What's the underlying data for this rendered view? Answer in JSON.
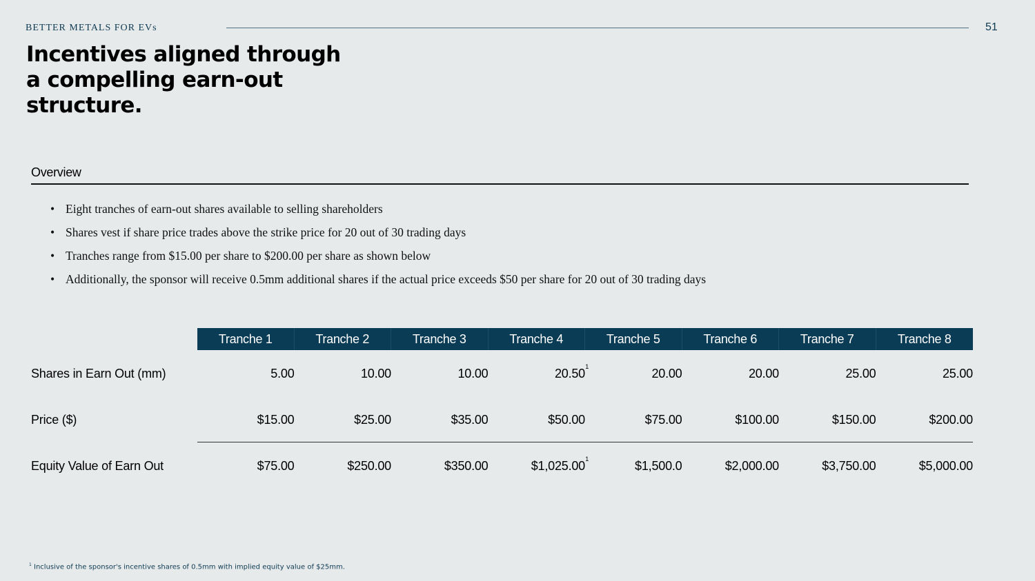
{
  "header": {
    "brand": "BETTER METALS FOR EVs",
    "page_number": "51"
  },
  "title": "Incentives aligned through a compelling earn-out structure.",
  "overview": {
    "label": "Overview",
    "bullets": [
      "Eight tranches of earn-out shares available to selling shareholders",
      "Shares vest if share price trades above the strike price for 20 out of 30 trading days",
      "Tranches range from $15.00 per share to $200.00 per share as shown below",
      "Additionally, the sponsor will receive 0.5mm additional shares if the actual price exceeds $50 per share for 20 out of 30 trading days"
    ]
  },
  "table": {
    "columns": [
      "Tranche 1",
      "Tranche 2",
      "Tranche 3",
      "Tranche 4",
      "Tranche 5",
      "Tranche 6",
      "Tranche 7",
      "Tranche 8"
    ],
    "rows": [
      {
        "label": "Shares in Earn Out (mm)",
        "values": [
          "5.00",
          "10.00",
          "10.00",
          "20.50",
          "20.00",
          "20.00",
          "25.00",
          "25.00"
        ],
        "footnote_marks": [
          "",
          "",
          "",
          "1",
          "",
          "",
          "",
          ""
        ]
      },
      {
        "label": "Price ($)",
        "values": [
          "$15.00",
          "$25.00",
          "$35.00",
          "$50.00",
          "$75.00",
          "$100.00",
          "$150.00",
          "$200.00"
        ],
        "footnote_marks": [
          "",
          "",
          "",
          "",
          "",
          "",
          "",
          ""
        ]
      },
      {
        "label": "Equity Value of Earn Out",
        "values": [
          "$75.00",
          "$250.00",
          "$350.00",
          "$1,025.00",
          "$1,500.0",
          "$2,000.00",
          "$3,750.00",
          "$5,000.00"
        ],
        "footnote_marks": [
          "",
          "",
          "",
          "1",
          "",
          "",
          "",
          ""
        ]
      }
    ]
  },
  "footnote": {
    "mark": "1",
    "text": "Inclusive of the sponsor's incentive shares of 0.5mm with implied equity value of $25mm."
  },
  "colors": {
    "background": "#e7eaeb",
    "header_fill": "#0b3c56",
    "brand_text": "#0d3a52"
  }
}
